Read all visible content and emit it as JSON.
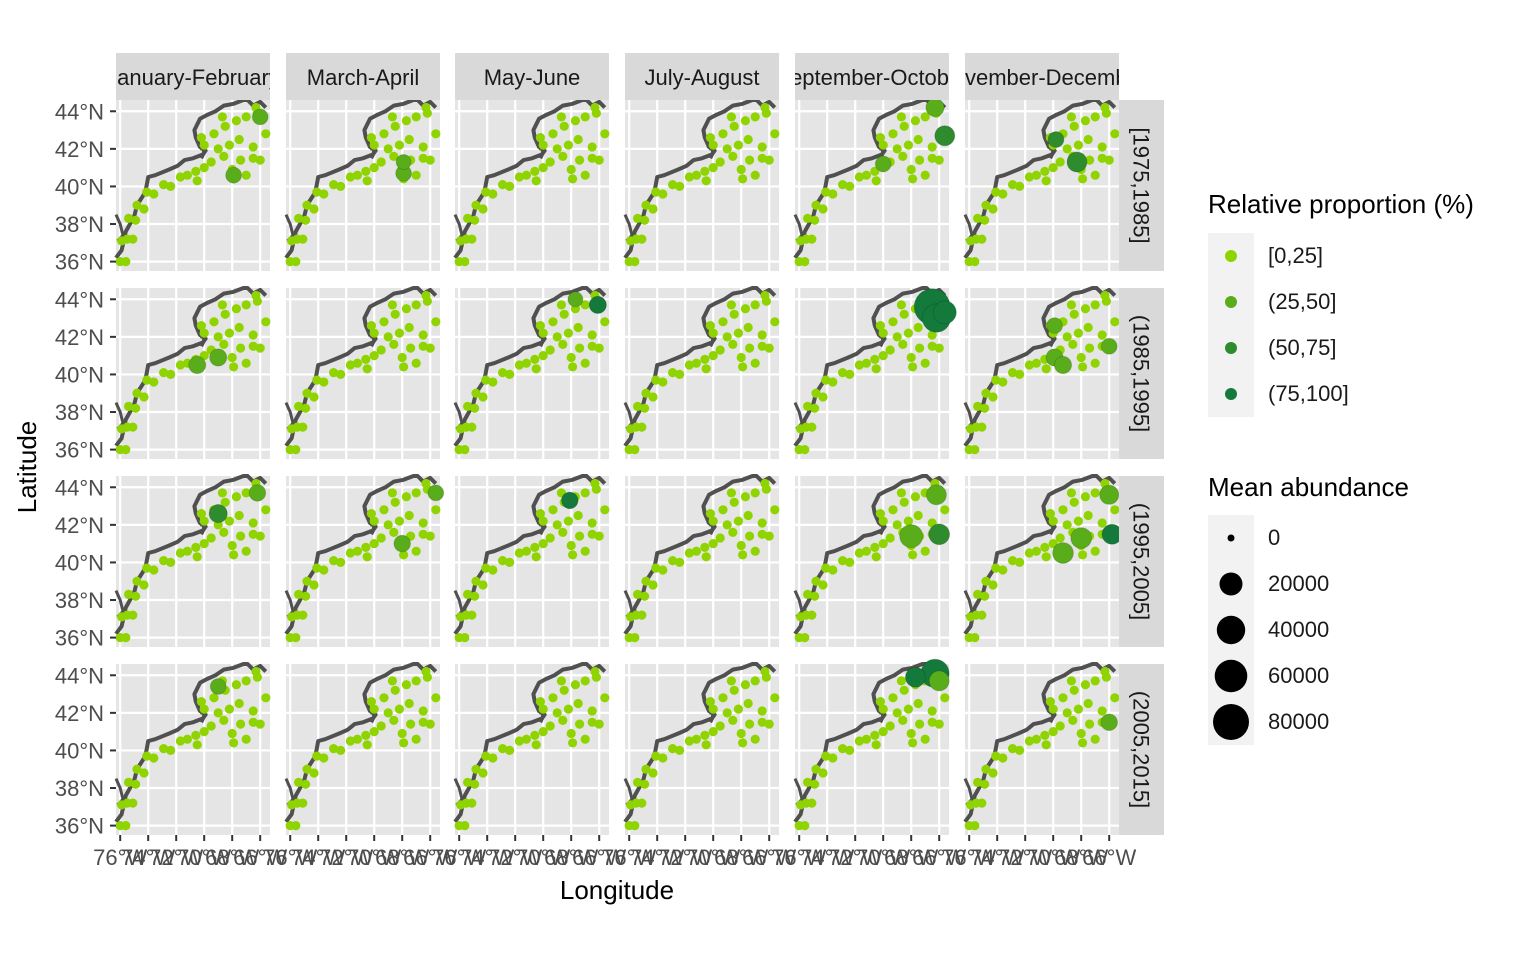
{
  "x_label": "Longitude",
  "y_label": "Latitude",
  "col_strips": [
    "January-February",
    "March-April",
    "May-June",
    "July-August",
    "September-October",
    "November-December"
  ],
  "row_strips": [
    "[1975,1985]",
    "(1985,1995]",
    "(1995,2005]",
    "(2005,2015]"
  ],
  "lat_ticks": [
    "44°N",
    "42°N",
    "40°N",
    "38°N",
    "36°N"
  ],
  "lon_ticks": [
    "76°W",
    "74°W",
    "72°W",
    "70°W",
    "68°W",
    "66°W"
  ],
  "legend_proportion": {
    "title": "Relative proportion (%)",
    "items": [
      {
        "label": "[0,25]",
        "color": "#8fd400"
      },
      {
        "label": "(25,50]",
        "color": "#5aad1a"
      },
      {
        "label": "(50,75]",
        "color": "#2e8b2e"
      },
      {
        "label": "(75,100]",
        "color": "#137a3c"
      }
    ]
  },
  "legend_abundance": {
    "title": "Mean abundance",
    "items": [
      {
        "label": "0",
        "value": 0
      },
      {
        "label": "20000",
        "value": 20000
      },
      {
        "label": "40000",
        "value": 40000
      },
      {
        "label": "60000",
        "value": 60000
      },
      {
        "label": "80000",
        "value": 80000
      }
    ]
  },
  "colors": {
    "panel_bg": "#e5e5e5",
    "strip_bg": "#d9d9d9",
    "grid": "#ffffff",
    "coast": "#505050",
    "axis_text": "#4d4d4d"
  },
  "chart_data": {
    "type": "scatter",
    "x_range_deg_lon": [
      -76.3,
      -65.3
    ],
    "y_range_deg_lat": [
      35.5,
      44.6
    ],
    "station_lonlat": [
      [
        -76.0,
        36.0
      ],
      [
        -75.6,
        36.0
      ],
      [
        -75.9,
        37.1
      ],
      [
        -75.5,
        37.2
      ],
      [
        -75.1,
        37.2
      ],
      [
        -75.4,
        38.3
      ],
      [
        -74.9,
        38.2
      ],
      [
        -74.8,
        39.0
      ],
      [
        -74.3,
        38.8
      ],
      [
        -74.1,
        39.7
      ],
      [
        -73.6,
        39.6
      ],
      [
        -72.9,
        40.1
      ],
      [
        -72.4,
        40.0
      ],
      [
        -71.7,
        40.5
      ],
      [
        -71.2,
        40.6
      ],
      [
        -70.6,
        40.8
      ],
      [
        -70.5,
        40.3
      ],
      [
        -70.0,
        41.0
      ],
      [
        -69.5,
        41.3
      ],
      [
        -68.6,
        41.6
      ],
      [
        -68.0,
        40.9
      ],
      [
        -67.4,
        41.4
      ],
      [
        -66.5,
        41.5
      ],
      [
        -66.0,
        41.4
      ],
      [
        -70.0,
        42.2
      ],
      [
        -70.2,
        42.6
      ],
      [
        -69.3,
        42.8
      ],
      [
        -68.5,
        43.2
      ],
      [
        -67.7,
        43.5
      ],
      [
        -67.0,
        43.7
      ],
      [
        -66.2,
        43.9
      ],
      [
        -69.0,
        42.0
      ],
      [
        -68.2,
        42.2
      ],
      [
        -67.5,
        42.5
      ],
      [
        -66.5,
        42.1
      ],
      [
        -65.6,
        42.8
      ],
      [
        -67.9,
        40.4
      ],
      [
        -67.0,
        40.6
      ],
      [
        -68.7,
        43.7
      ],
      [
        -66.3,
        44.2
      ]
    ],
    "highlighted_points": [
      {
        "row": 0,
        "col": 0,
        "lon": -66.0,
        "lat": 43.7,
        "prop": "(25,50]",
        "abundance": 4000
      },
      {
        "row": 0,
        "col": 0,
        "lon": -67.9,
        "lat": 40.6,
        "prop": "(25,50]",
        "abundance": 4000
      },
      {
        "row": 0,
        "col": 1,
        "lon": -67.9,
        "lat": 40.7,
        "prop": "(25,50]",
        "abundance": 4000
      },
      {
        "row": 0,
        "col": 1,
        "lon": -67.9,
        "lat": 41.3,
        "prop": "(25,50]",
        "abundance": 3000
      },
      {
        "row": 0,
        "col": 4,
        "lon": -66.3,
        "lat": 44.2,
        "prop": "(25,50]",
        "abundance": 8000
      },
      {
        "row": 0,
        "col": 4,
        "lon": -65.6,
        "lat": 42.7,
        "prop": "(50,75]",
        "abundance": 12000
      },
      {
        "row": 0,
        "col": 4,
        "lon": -70.0,
        "lat": 41.2,
        "prop": "(25,50]",
        "abundance": 4000
      },
      {
        "row": 0,
        "col": 5,
        "lon": -69.8,
        "lat": 42.5,
        "prop": "(50,75]",
        "abundance": 4000
      },
      {
        "row": 0,
        "col": 5,
        "lon": -68.3,
        "lat": 41.3,
        "prop": "(50,75]",
        "abundance": 12000
      },
      {
        "row": 1,
        "col": 0,
        "lon": -69.0,
        "lat": 40.9,
        "prop": "(25,50]",
        "abundance": 6000
      },
      {
        "row": 1,
        "col": 0,
        "lon": -70.5,
        "lat": 40.5,
        "prop": "(25,50]",
        "abundance": 6000
      },
      {
        "row": 1,
        "col": 2,
        "lon": -66.1,
        "lat": 43.7,
        "prop": "(75,100]",
        "abundance": 6000
      },
      {
        "row": 1,
        "col": 2,
        "lon": -67.7,
        "lat": 44.0,
        "prop": "(25,50]",
        "abundance": 3000
      },
      {
        "row": 1,
        "col": 4,
        "lon": -66.5,
        "lat": 43.6,
        "prop": "(75,100]",
        "abundance": 80000
      },
      {
        "row": 1,
        "col": 4,
        "lon": -66.2,
        "lat": 43.0,
        "prop": "(75,100]",
        "abundance": 40000
      },
      {
        "row": 1,
        "col": 4,
        "lon": -65.6,
        "lat": 43.3,
        "prop": "(75,100]",
        "abundance": 20000
      },
      {
        "row": 1,
        "col": 5,
        "lon": -69.9,
        "lat": 42.6,
        "prop": "(25,50]",
        "abundance": 4000
      },
      {
        "row": 1,
        "col": 5,
        "lon": -66.0,
        "lat": 41.5,
        "prop": "(25,50]",
        "abundance": 4000
      },
      {
        "row": 1,
        "col": 5,
        "lon": -69.9,
        "lat": 40.9,
        "prop": "(25,50]",
        "abundance": 6000
      },
      {
        "row": 1,
        "col": 5,
        "lon": -69.3,
        "lat": 40.5,
        "prop": "(25,50]",
        "abundance": 6000
      },
      {
        "row": 2,
        "col": 0,
        "lon": -69.0,
        "lat": 42.6,
        "prop": "(50,75]",
        "abundance": 8000
      },
      {
        "row": 2,
        "col": 0,
        "lon": -66.2,
        "lat": 43.7,
        "prop": "(25,50]",
        "abundance": 5000
      },
      {
        "row": 2,
        "col": 1,
        "lon": -68.0,
        "lat": 41.0,
        "prop": "(25,50]",
        "abundance": 5000
      },
      {
        "row": 2,
        "col": 1,
        "lon": -65.6,
        "lat": 43.7,
        "prop": "(25,50]",
        "abundance": 4000
      },
      {
        "row": 2,
        "col": 2,
        "lon": -68.1,
        "lat": 43.3,
        "prop": "(75,100]",
        "abundance": 5000
      },
      {
        "row": 2,
        "col": 4,
        "lon": -66.2,
        "lat": 43.6,
        "prop": "(25,50]",
        "abundance": 12000
      },
      {
        "row": 2,
        "col": 4,
        "lon": -66.0,
        "lat": 41.5,
        "prop": "(50,75]",
        "abundance": 14000
      },
      {
        "row": 2,
        "col": 4,
        "lon": -68.0,
        "lat": 41.4,
        "prop": "(25,50]",
        "abundance": 20000
      },
      {
        "row": 2,
        "col": 5,
        "lon": -66.0,
        "lat": 43.6,
        "prop": "(25,50]",
        "abundance": 10000
      },
      {
        "row": 2,
        "col": 5,
        "lon": -65.8,
        "lat": 41.5,
        "prop": "(75,100]",
        "abundance": 12000
      },
      {
        "row": 2,
        "col": 5,
        "lon": -68.0,
        "lat": 41.3,
        "prop": "(25,50]",
        "abundance": 14000
      },
      {
        "row": 2,
        "col": 5,
        "lon": -69.3,
        "lat": 40.5,
        "prop": "(25,50]",
        "abundance": 14000
      },
      {
        "row": 3,
        "col": 0,
        "lon": -69.0,
        "lat": 43.4,
        "prop": "(25,50]",
        "abundance": 4000
      },
      {
        "row": 3,
        "col": 4,
        "lon": -66.3,
        "lat": 44.1,
        "prop": "(75,100]",
        "abundance": 40000
      },
      {
        "row": 3,
        "col": 4,
        "lon": -67.7,
        "lat": 43.9,
        "prop": "(75,100]",
        "abundance": 12000
      },
      {
        "row": 3,
        "col": 4,
        "lon": -66.0,
        "lat": 43.7,
        "prop": "(25,50]",
        "abundance": 12000
      },
      {
        "row": 3,
        "col": 5,
        "lon": -66.0,
        "lat": 41.5,
        "prop": "(25,50]",
        "abundance": 5000
      }
    ]
  }
}
